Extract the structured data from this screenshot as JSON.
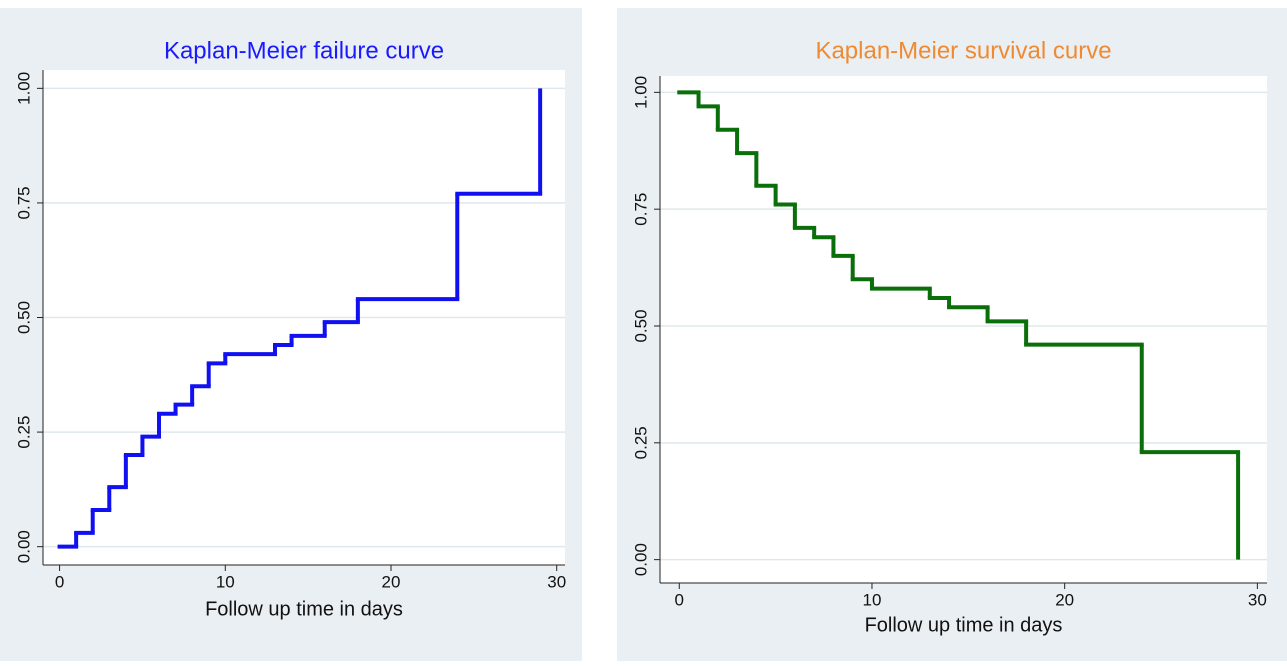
{
  "chart_data": [
    {
      "type": "step",
      "title": "Kaplan-Meier failure curve",
      "title_color": "#1a1aff",
      "xlabel": "Follow up time in days",
      "x": [
        0,
        1,
        2,
        3,
        4,
        5,
        6,
        7,
        8,
        9,
        10,
        13,
        14,
        16,
        18,
        24,
        29
      ],
      "series": [
        {
          "color": "#1010f0",
          "values": [
            0,
            0.03,
            0.08,
            0.13,
            0.2,
            0.24,
            0.29,
            0.31,
            0.35,
            0.4,
            0.42,
            0.44,
            0.46,
            0.49,
            0.54,
            0.77,
            1
          ]
        }
      ],
      "xlim": [
        -1,
        30.5
      ],
      "ylim": [
        -0.04,
        1.04
      ],
      "xticks": [
        0,
        10,
        20,
        30
      ],
      "yticks": [
        {
          "value": 0,
          "label": "0.00"
        },
        {
          "value": 0.25,
          "label": "0.25"
        },
        {
          "value": 0.5,
          "label": "0.50"
        },
        {
          "value": 0.75,
          "label": "0.75"
        },
        {
          "value": 1,
          "label": "1.00"
        }
      ],
      "grid": true
    },
    {
      "type": "step",
      "title": "Kaplan-Meier survival curve",
      "title_color": "#f08a30",
      "xlabel": "Follow up time in days",
      "x": [
        0,
        1,
        2,
        3,
        4,
        5,
        6,
        7,
        8,
        9,
        10,
        13,
        14,
        16,
        18,
        24,
        29
      ],
      "series": [
        {
          "color": "#0a6e0a",
          "values": [
            1,
            0.97,
            0.92,
            0.87,
            0.8,
            0.76,
            0.71,
            0.69,
            0.65,
            0.6,
            0.58,
            0.56,
            0.54,
            0.51,
            0.46,
            0.23,
            0
          ]
        }
      ],
      "xlim": [
        -1,
        30.5
      ],
      "ylim": [
        -0.05,
        1.035
      ],
      "xticks": [
        0,
        10,
        20,
        30
      ],
      "yticks": [
        {
          "value": 0,
          "label": "0.00"
        },
        {
          "value": 0.25,
          "label": "0.25"
        },
        {
          "value": 0.5,
          "label": "0.50"
        },
        {
          "value": 0.75,
          "label": "0.75"
        },
        {
          "value": 1,
          "label": "1.00"
        }
      ],
      "grid": true
    }
  ]
}
